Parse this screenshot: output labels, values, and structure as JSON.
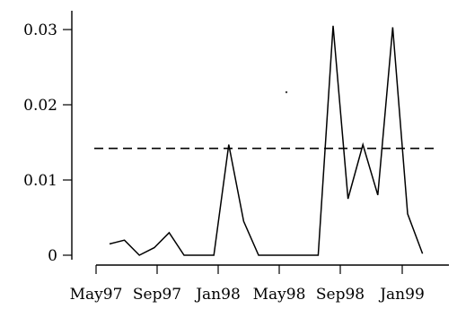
{
  "chart_data": {
    "type": "line",
    "title": "",
    "xlabel": "",
    "ylabel": "",
    "x_tick_labels": [
      "May97",
      "Sep97",
      "Jan98",
      "May98",
      "Sep98",
      "Jan99"
    ],
    "y_ticks": [
      0,
      0.01,
      0.02,
      0.03
    ],
    "y_tick_labels": [
      "0",
      "0.01",
      "0.02",
      "0.03"
    ],
    "ylim": [
      -0.0015,
      0.033
    ],
    "grid": false,
    "series": [
      {
        "x": [
          "Apr97",
          "May97",
          "Jun97",
          "Jul97",
          "Aug97",
          "Sep97",
          "Oct97",
          "Nov97",
          "Dec97",
          "Jan98",
          "Feb98",
          "Mar98",
          "Apr98",
          "May98",
          "Jun98",
          "Jul98",
          "Aug98",
          "Sep98",
          "Oct98",
          "Nov98",
          "Dec98",
          "Jan99",
          "Feb99",
          "Mar99"
        ],
        "values": [
          0.0015,
          0.002,
          0.0,
          0.001,
          0.003,
          0.0,
          0.0,
          0.0,
          0.0147,
          0.0045,
          0.0,
          0.0,
          0.0,
          0.0,
          0.0,
          0.0305,
          0.0075,
          0.0147,
          0.008,
          0.0303,
          0.0055,
          0.0002,
          null,
          null
        ]
      }
    ],
    "reference_line": {
      "y": 0.0142,
      "style": "dashed"
    }
  }
}
